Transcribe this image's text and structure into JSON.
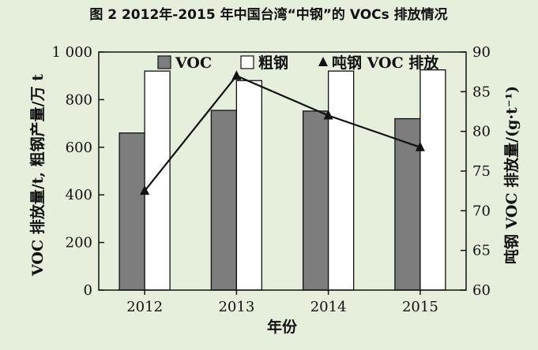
{
  "chart_data": {
    "type": "bar",
    "title": "图 2 2012年-2015 年中国台湾“中钢”的 VOCs 排放情况",
    "categories": [
      "2012",
      "2013",
      "2014",
      "2015"
    ],
    "xlabel": "年份",
    "ylabel": "VOC 排放量/t, 粗钢产量/万 t",
    "y2label": "吨钢 VOC 排放量/(g·t⁻¹)",
    "ylim": [
      0,
      1000
    ],
    "y2lim": [
      60,
      90
    ],
    "yticks": [
      "0",
      "200",
      "400",
      "600",
      "800",
      "1 000"
    ],
    "y2ticks": [
      "60",
      "65",
      "70",
      "75",
      "80",
      "85",
      "90"
    ],
    "legend_position": "top",
    "series": [
      {
        "name": "VOC",
        "kind": "bar",
        "color": "#7d7d7d",
        "values": [
          660,
          755,
          752,
          720
        ]
      },
      {
        "name": "粗钢",
        "kind": "bar",
        "color": "#ffffff",
        "values": [
          920,
          880,
          920,
          925
        ]
      },
      {
        "name": "吨钢 VOC 排放",
        "kind": "line",
        "axis": "right",
        "marker": "triangle",
        "color": "#111111",
        "values": [
          72.5,
          87,
          82,
          78
        ]
      }
    ]
  }
}
